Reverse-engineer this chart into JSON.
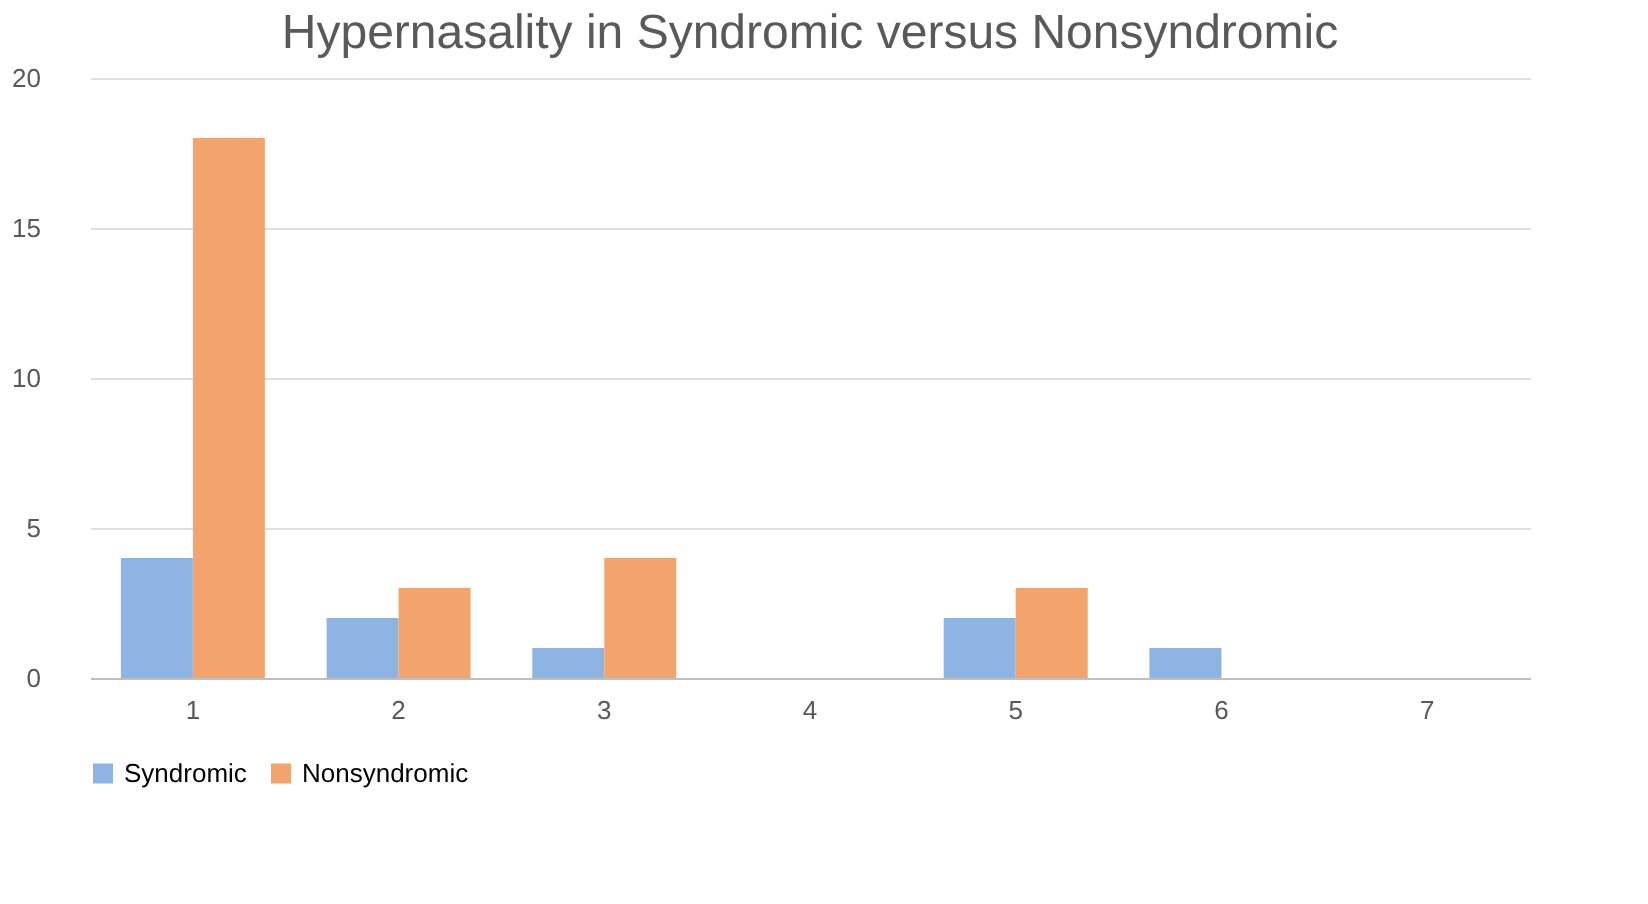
{
  "chart_data": {
    "type": "bar",
    "title": "Hypernasality in Syndromic versus Nonsyndromic",
    "categories": [
      "1",
      "2",
      "3",
      "4",
      "5",
      "6",
      "7"
    ],
    "series": [
      {
        "name": "Syndromic",
        "color": "#8db4e2",
        "values": [
          4,
          2,
          1,
          0,
          2,
          1,
          0
        ]
      },
      {
        "name": "Nonsyndromic",
        "color": "#f3a46c",
        "values": [
          18,
          3,
          4,
          0,
          3,
          0,
          0
        ]
      }
    ],
    "ylim": [
      0,
      20
    ],
    "yticks": [
      0,
      5,
      10,
      15,
      20
    ],
    "grid": "y",
    "legend": "bottom"
  }
}
